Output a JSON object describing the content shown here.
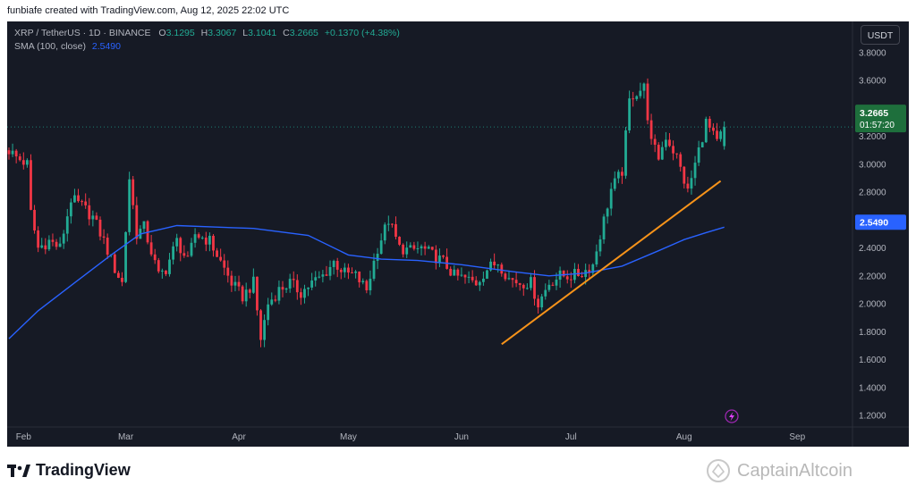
{
  "header": {
    "text": "funbiafe created with TradingView.com, Aug 12, 2025 22:02 UTC"
  },
  "legend": {
    "symbol": "XRP / TetherUS · 1D · BINANCE",
    "open_label": "O",
    "open": "3.1295",
    "high_label": "H",
    "high": "3.3067",
    "low_label": "L",
    "low": "3.1041",
    "close_label": "C",
    "close": "3.2665",
    "change": "+0.1370 (+4.38%)",
    "sma_label": "SMA (100, close)",
    "sma_value": "2.5490"
  },
  "currency_button": "USDT",
  "price_badge": {
    "price": "3.2665",
    "countdown": "01:57:20"
  },
  "sma_badge": "2.5490",
  "footer": {
    "brand": "TradingView",
    "watermark": "CaptainAltcoin"
  },
  "colors": {
    "background": "#161a25",
    "up": "#22ab94",
    "down": "#f23645",
    "sma": "#2962ff",
    "trendline": "#f7931a",
    "axis_text": "#b2b5be"
  },
  "chart_data": {
    "type": "candlestick",
    "ylim": [
      1.2,
      3.9
    ],
    "y_ticks": [
      "1.2000",
      "1.4000",
      "1.6000",
      "1.8000",
      "2.0000",
      "2.2000",
      "2.4000",
      "2.6000",
      "2.8000",
      "3.0000",
      "3.2000",
      "3.4000",
      "3.6000",
      "3.8000"
    ],
    "x_ticks": [
      "Feb",
      "Mar",
      "Apr",
      "May",
      "Jun",
      "Jul",
      "Aug",
      "Sep"
    ],
    "close_path": [
      [
        "2025-01-28",
        3.1
      ],
      [
        "2025-01-30",
        3.05
      ],
      [
        "2025-02-02",
        3.0
      ],
      [
        "2025-02-03",
        2.65
      ],
      [
        "2025-02-05",
        2.4
      ],
      [
        "2025-02-08",
        2.45
      ],
      [
        "2025-02-11",
        2.4
      ],
      [
        "2025-02-14",
        2.75
      ],
      [
        "2025-02-17",
        2.7
      ],
      [
        "2025-02-20",
        2.62
      ],
      [
        "2025-02-23",
        2.45
      ],
      [
        "2025-02-26",
        2.25
      ],
      [
        "2025-02-28",
        2.15
      ],
      [
        "2025-03-02",
        2.9
      ],
      [
        "2025-03-04",
        2.5
      ],
      [
        "2025-03-06",
        2.55
      ],
      [
        "2025-03-10",
        2.2
      ],
      [
        "2025-03-12",
        2.25
      ],
      [
        "2025-03-15",
        2.45
      ],
      [
        "2025-03-18",
        2.3
      ],
      [
        "2025-03-20",
        2.5
      ],
      [
        "2025-03-24",
        2.45
      ],
      [
        "2025-03-27",
        2.3
      ],
      [
        "2025-03-30",
        2.15
      ],
      [
        "2025-04-02",
        2.05
      ],
      [
        "2025-04-05",
        2.15
      ],
      [
        "2025-04-07",
        1.75
      ],
      [
        "2025-04-09",
        2.0
      ],
      [
        "2025-04-12",
        2.1
      ],
      [
        "2025-04-15",
        2.15
      ],
      [
        "2025-04-18",
        2.08
      ],
      [
        "2025-04-21",
        2.15
      ],
      [
        "2025-04-24",
        2.2
      ],
      [
        "2025-04-27",
        2.3
      ],
      [
        "2025-04-30",
        2.22
      ],
      [
        "2025-05-03",
        2.2
      ],
      [
        "2025-05-06",
        2.1
      ],
      [
        "2025-05-09",
        2.4
      ],
      [
        "2025-05-12",
        2.6
      ],
      [
        "2025-05-15",
        2.4
      ],
      [
        "2025-05-18",
        2.38
      ],
      [
        "2025-05-21",
        2.4
      ],
      [
        "2025-05-24",
        2.35
      ],
      [
        "2025-05-27",
        2.3
      ],
      [
        "2025-05-30",
        2.2
      ],
      [
        "2025-06-02",
        2.18
      ],
      [
        "2025-06-05",
        2.15
      ],
      [
        "2025-06-08",
        2.25
      ],
      [
        "2025-06-11",
        2.3
      ],
      [
        "2025-06-14",
        2.18
      ],
      [
        "2025-06-17",
        2.15
      ],
      [
        "2025-06-20",
        2.15
      ],
      [
        "2025-06-22",
        2.0
      ],
      [
        "2025-06-25",
        2.15
      ],
      [
        "2025-06-28",
        2.2
      ],
      [
        "2025-07-01",
        2.2
      ],
      [
        "2025-07-04",
        2.22
      ],
      [
        "2025-07-07",
        2.28
      ],
      [
        "2025-07-10",
        2.6
      ],
      [
        "2025-07-12",
        2.82
      ],
      [
        "2025-07-15",
        2.95
      ],
      [
        "2025-07-17",
        3.45
      ],
      [
        "2025-07-18",
        3.5
      ],
      [
        "2025-07-21",
        3.55
      ],
      [
        "2025-07-23",
        3.15
      ],
      [
        "2025-07-25",
        3.05
      ],
      [
        "2025-07-27",
        3.2
      ],
      [
        "2025-07-30",
        3.05
      ],
      [
        "2025-08-02",
        2.8
      ],
      [
        "2025-08-04",
        3.0
      ],
      [
        "2025-08-07",
        3.3
      ],
      [
        "2025-08-10",
        3.15
      ],
      [
        "2025-08-12",
        3.2665
      ]
    ],
    "sma_path": [
      [
        "2025-01-28",
        1.75
      ],
      [
        "2025-02-05",
        1.95
      ],
      [
        "2025-02-15",
        2.15
      ],
      [
        "2025-02-25",
        2.35
      ],
      [
        "2025-03-05",
        2.5
      ],
      [
        "2025-03-15",
        2.56
      ],
      [
        "2025-03-25",
        2.55
      ],
      [
        "2025-04-05",
        2.54
      ],
      [
        "2025-04-20",
        2.49
      ],
      [
        "2025-05-01",
        2.35
      ],
      [
        "2025-05-10",
        2.32
      ],
      [
        "2025-05-20",
        2.31
      ],
      [
        "2025-06-01",
        2.28
      ],
      [
        "2025-06-15",
        2.23
      ],
      [
        "2025-06-25",
        2.2
      ],
      [
        "2025-07-05",
        2.22
      ],
      [
        "2025-07-15",
        2.27
      ],
      [
        "2025-07-25",
        2.38
      ],
      [
        "2025-08-01",
        2.46
      ],
      [
        "2025-08-07",
        2.51
      ],
      [
        "2025-08-12",
        2.549
      ]
    ],
    "trendline": [
      [
        "2025-06-12",
        1.71
      ],
      [
        "2025-08-11",
        2.88
      ]
    ]
  }
}
